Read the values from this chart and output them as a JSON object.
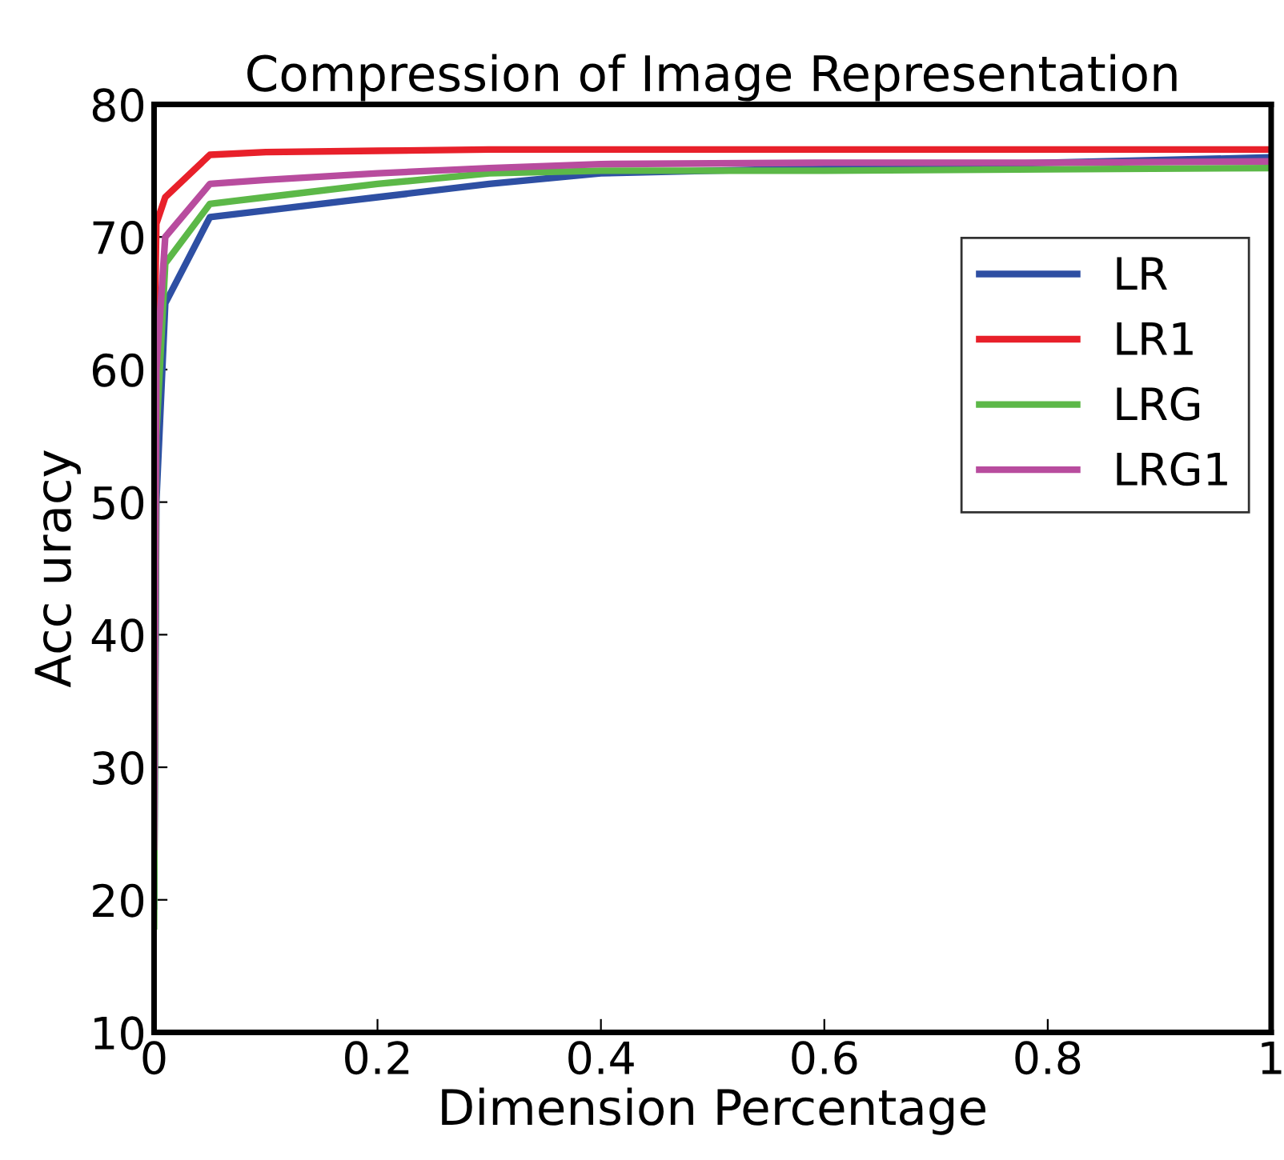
{
  "chart_data": {
    "type": "line",
    "title": "Compression of Image Representation",
    "xlabel": "Dimension Percentage",
    "ylabel": "Acc uracy",
    "x": [
      0,
      0.002,
      0.01,
      0.05,
      0.1,
      0.2,
      0.3,
      0.4,
      0.6,
      0.8,
      1
    ],
    "series": [
      {
        "name": "LR",
        "color": "#2e4fa3",
        "values": [
          19.5,
          50,
          65,
          71.5,
          72,
          73,
          74,
          74.8,
          75.2,
          75.6,
          76
        ]
      },
      {
        "name": "LR1",
        "color": "#e8202a",
        "values": [
          60,
          71,
          73,
          76.2,
          76.4,
          76.5,
          76.6,
          76.6,
          76.6,
          76.6,
          76.6
        ]
      },
      {
        "name": "LRG",
        "color": "#5cb848",
        "values": [
          18,
          55,
          68,
          72.5,
          73,
          74,
          74.8,
          75,
          75,
          75.1,
          75.2
        ]
      },
      {
        "name": "LRG1",
        "color": "#b84c9e",
        "values": [
          24,
          60,
          70,
          74,
          74.3,
          74.8,
          75.2,
          75.5,
          75.6,
          75.6,
          75.7
        ]
      }
    ],
    "xlim": [
      0,
      1
    ],
    "ylim": [
      10,
      80
    ],
    "xticks": [
      0,
      0.2,
      0.4,
      0.6,
      0.8,
      1
    ],
    "yticks": [
      10,
      20,
      30,
      40,
      50,
      60,
      70,
      80
    ],
    "legend": "top right",
    "grid": false,
    "line_style": "solid"
  }
}
